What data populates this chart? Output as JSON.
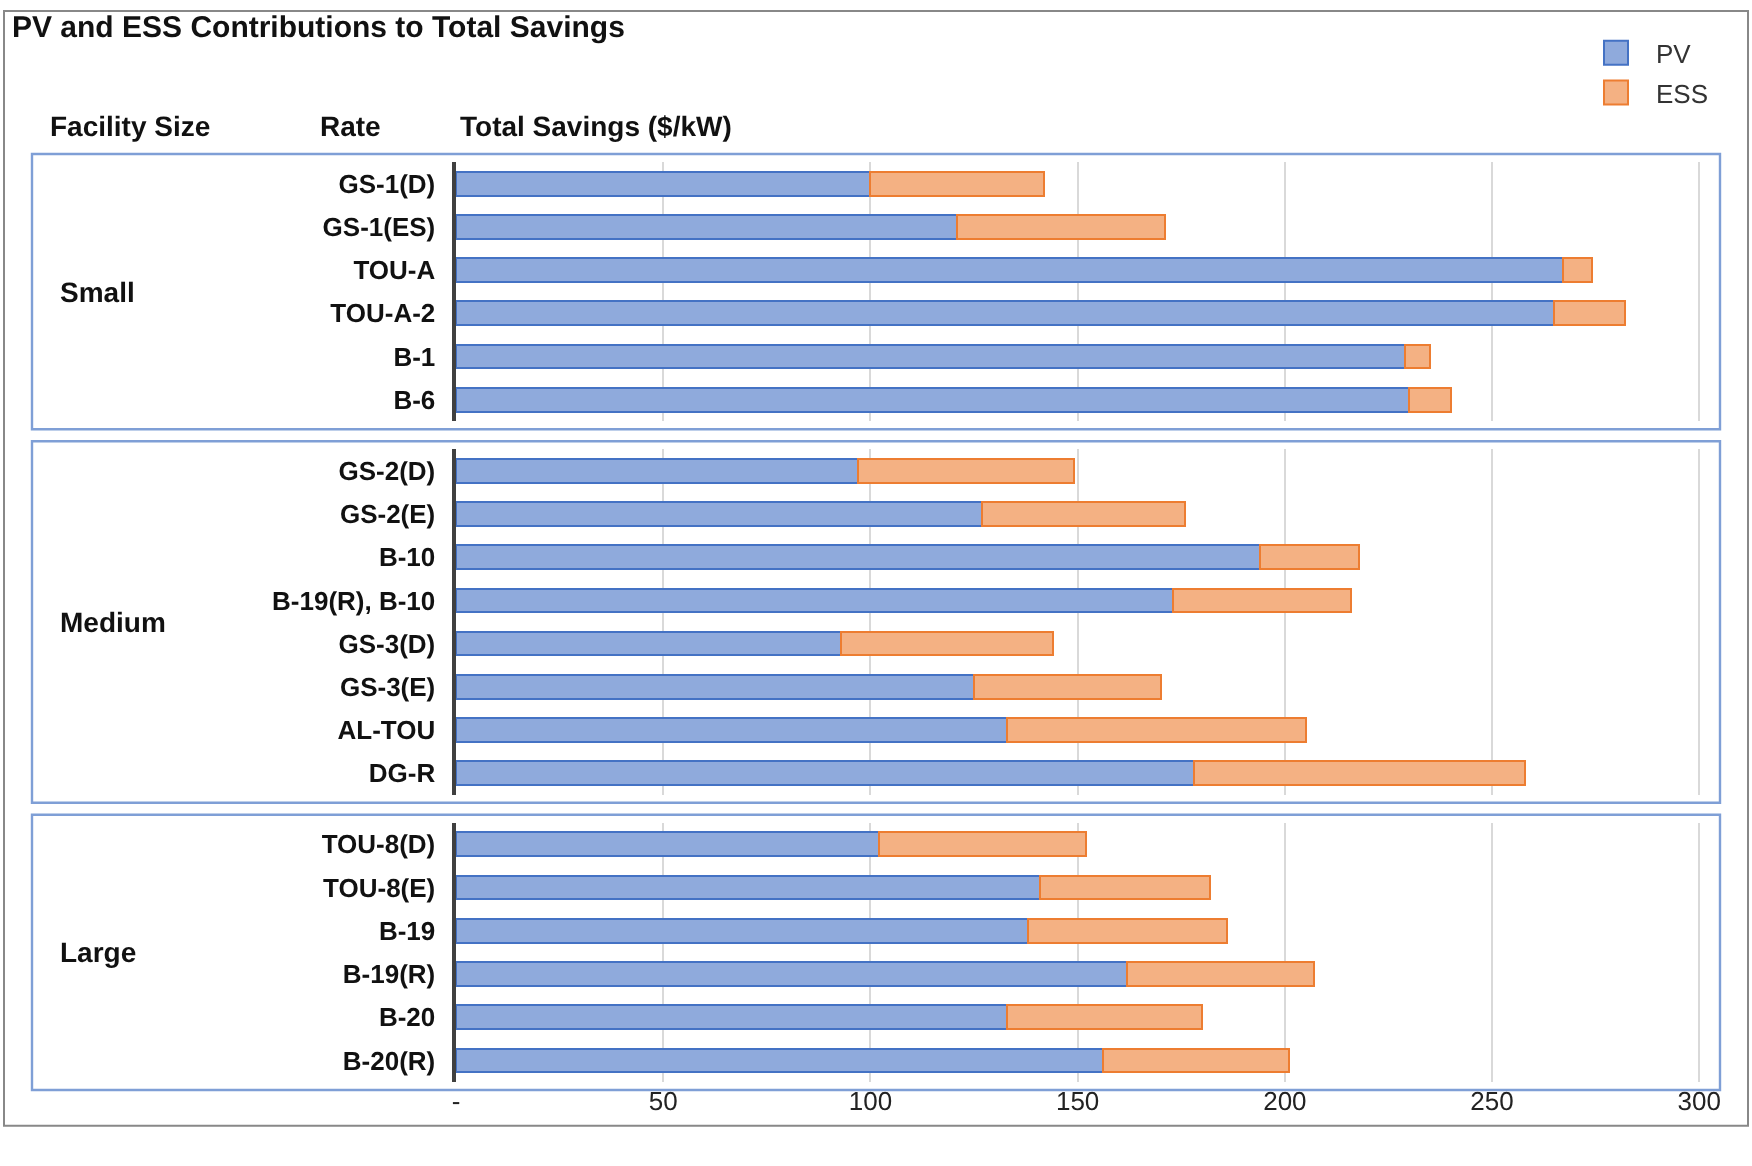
{
  "chart_data": [
    {
      "type": "bar",
      "orientation": "horizontal",
      "stacked": true,
      "title": "PV and ESS Contributions to Total Savings",
      "xlabel": "Total Savings ($/kW)",
      "ylabel": "Small",
      "annotations": [
        "Facility Size",
        "Rate"
      ],
      "legend": "top right",
      "grid": "x",
      "tick_labels": "y",
      "categories": [
        "GS-1(D)",
        "GS-1(ES)",
        "TOU-A",
        "TOU-A-2",
        "B-1",
        "B-6"
      ],
      "series": [
        {
          "name": "PV",
          "color": "#8faadc",
          "values": [
            100,
            121,
            267,
            265,
            229,
            230
          ]
        },
        {
          "name": "ESS",
          "color": "#f4b183",
          "values": [
            42,
            50,
            7,
            17,
            6,
            10
          ]
        }
      ],
      "xlim": [
        0,
        305
      ]
    },
    {
      "type": "bar",
      "orientation": "horizontal",
      "stacked": true,
      "ylabel": "Medium",
      "grid": "x",
      "tick_labels": "y",
      "categories": [
        "GS-2(D)",
        "GS-2(E)",
        "B-10",
        "B-19(R), B-10",
        "GS-3(D)",
        "GS-3(E)",
        "AL-TOU",
        "DG-R"
      ],
      "series": [
        {
          "color": "#8faadc",
          "values": [
            97,
            127,
            194,
            173,
            93,
            125,
            133,
            178
          ]
        },
        {
          "color": "#f4b183",
          "values": [
            52,
            49,
            24,
            43,
            51,
            45,
            72,
            80
          ]
        }
      ],
      "xlim": [
        0,
        305
      ]
    },
    {
      "type": "bar",
      "orientation": "horizontal",
      "stacked": true,
      "ylabel": "Large",
      "grid": "x",
      "categories": [
        "TOU-8(D)",
        "TOU-8(E)",
        "B-19",
        "B-19(R)",
        "B-20",
        "B-20(R)"
      ],
      "series": [
        {
          "color": "#8faadc",
          "values": [
            102,
            141,
            138,
            162,
            133,
            156
          ]
        },
        {
          "color": "#f4b183",
          "values": [
            50,
            41,
            48,
            45,
            47,
            45
          ]
        }
      ],
      "xlim": [
        0,
        305
      ],
      "xticks": [
        {
          "value": 0,
          "label": "-"
        },
        50,
        100,
        150,
        200,
        250,
        300
      ]
    }
  ]
}
